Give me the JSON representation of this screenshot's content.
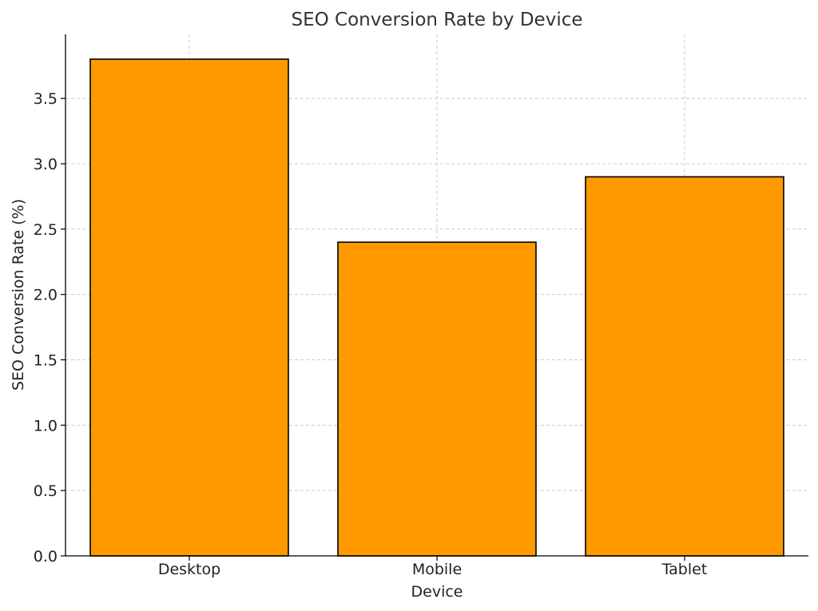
{
  "chart_data": {
    "type": "bar",
    "title": "SEO Conversion Rate by Device",
    "xlabel": "Device",
    "ylabel": "SEO Conversion Rate (%)",
    "categories": [
      "Desktop",
      "Mobile",
      "Tablet"
    ],
    "values": [
      3.8,
      2.4,
      2.9
    ],
    "ylim": [
      0,
      3.99
    ],
    "yticks": [
      0.0,
      0.5,
      1.0,
      1.5,
      2.0,
      2.5,
      3.0,
      3.5
    ],
    "ytick_labels": [
      "0.0",
      "0.5",
      "1.0",
      "1.5",
      "2.0",
      "2.5",
      "3.0",
      "3.5"
    ],
    "grid": true,
    "bar_color": "#ff9900",
    "edge_color": "#000000"
  }
}
